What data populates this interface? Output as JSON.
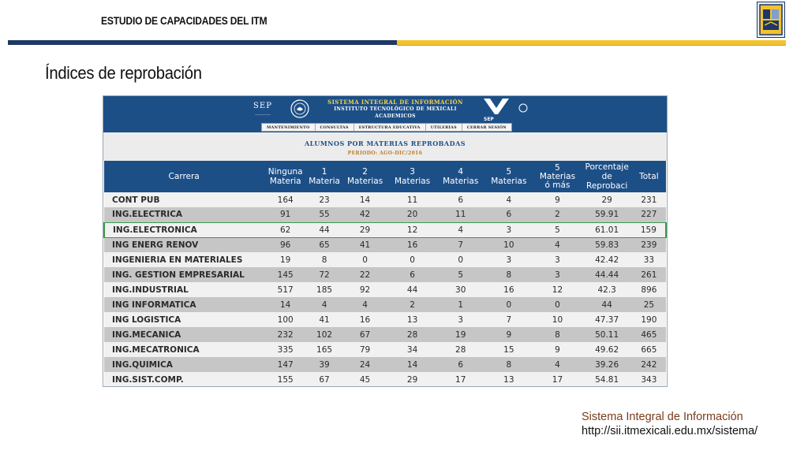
{
  "slide": {
    "header_title": "ESTUDIO DE CAPACIDADES DEL ITM",
    "title": "Índices de reprobación",
    "logo_icon": "itm-shield-icon",
    "colors": {
      "bar_blue": "#1f3864",
      "bar_gold": "#f2c331",
      "footer_title": "#7a3b1c"
    }
  },
  "sii": {
    "sep_label": "SEP",
    "system_title": "Sistema Integral de Información",
    "institute": "Instituto Tecnológico de Mexicali",
    "section": "ACADEMICOS",
    "menu": [
      "Mantenimiento",
      "Consultas",
      "Estructura Educativa",
      "Utilerías",
      "Cerrar Sesión"
    ],
    "report_title": "Alumnos Por Materias Reprobadas",
    "period": "Periodo: AGO-DIC/2016",
    "colors": {
      "banner": "#1d4f87",
      "title_gold": "#f6d34a",
      "period": "#c07b2a"
    }
  },
  "table": {
    "headers": {
      "carrera": "Carrera",
      "ninguna_1": "Ninguna",
      "ninguna_2": "Materia",
      "uno_1": "1",
      "uno_2": "Materia",
      "dos_1": "2",
      "dos_2": "Materias",
      "tres_1": "3",
      "tres_2": "Materias",
      "cuatro_1": "4",
      "cuatro_2": "Materias",
      "cinco_1": "5",
      "cinco_2": "Materias",
      "cinco_mas_1": "5",
      "cinco_mas_2": "Materias",
      "cinco_mas_3": "ó más",
      "pct_1": "Porcentaje",
      "pct_2": "de",
      "pct_3": "Reprobaci",
      "total": "Total"
    },
    "rows": [
      {
        "carrera": "CONT PUB",
        "ninguna": "164",
        "m1": "23",
        "m2": "14",
        "m3": "11",
        "m4": "6",
        "m5": "4",
        "m5mas": "9",
        "pct": "29",
        "total": "231"
      },
      {
        "carrera": "ING.ELECTRICA",
        "ninguna": "91",
        "m1": "55",
        "m2": "42",
        "m3": "20",
        "m4": "11",
        "m5": "6",
        "m5mas": "2",
        "pct": "59.91",
        "total": "227"
      },
      {
        "carrera": "ING.ELECTRONICA",
        "ninguna": "62",
        "m1": "44",
        "m2": "29",
        "m3": "12",
        "m4": "4",
        "m5": "3",
        "m5mas": "5",
        "pct": "61.01",
        "total": "159"
      },
      {
        "carrera": "ING ENERG RENOV",
        "ninguna": "96",
        "m1": "65",
        "m2": "41",
        "m3": "16",
        "m4": "7",
        "m5": "10",
        "m5mas": "4",
        "pct": "59.83",
        "total": "239"
      },
      {
        "carrera": "INGENIERIA EN MATERIALES",
        "ninguna": "19",
        "m1": "8",
        "m2": "0",
        "m3": "0",
        "m4": "0",
        "m5": "3",
        "m5mas": "3",
        "pct": "42.42",
        "total": "33"
      },
      {
        "carrera": "ING. GESTION EMPRESARIAL",
        "ninguna": "145",
        "m1": "72",
        "m2": "22",
        "m3": "6",
        "m4": "5",
        "m5": "8",
        "m5mas": "3",
        "pct": "44.44",
        "total": "261"
      },
      {
        "carrera": "ING.INDUSTRIAL",
        "ninguna": "517",
        "m1": "185",
        "m2": "92",
        "m3": "44",
        "m4": "30",
        "m5": "16",
        "m5mas": "12",
        "pct": "42.3",
        "total": "896"
      },
      {
        "carrera": "ING INFORMATICA",
        "ninguna": "14",
        "m1": "4",
        "m2": "4",
        "m3": "2",
        "m4": "1",
        "m5": "0",
        "m5mas": "0",
        "pct": "44",
        "total": "25"
      },
      {
        "carrera": "ING LOGISTICA",
        "ninguna": "100",
        "m1": "41",
        "m2": "16",
        "m3": "13",
        "m4": "3",
        "m5": "7",
        "m5mas": "10",
        "pct": "47.37",
        "total": "190"
      },
      {
        "carrera": "ING.MECANICA",
        "ninguna": "232",
        "m1": "102",
        "m2": "67",
        "m3": "28",
        "m4": "19",
        "m5": "9",
        "m5mas": "8",
        "pct": "50.11",
        "total": "465"
      },
      {
        "carrera": "ING.MECATRONICA",
        "ninguna": "335",
        "m1": "165",
        "m2": "79",
        "m3": "34",
        "m4": "28",
        "m5": "15",
        "m5mas": "9",
        "pct": "49.62",
        "total": "665"
      },
      {
        "carrera": "ING.QUIMICA",
        "ninguna": "147",
        "m1": "39",
        "m2": "24",
        "m3": "14",
        "m4": "6",
        "m5": "8",
        "m5mas": "4",
        "pct": "39.26",
        "total": "242"
      },
      {
        "carrera": "ING.SIST.COMP.",
        "ninguna": "155",
        "m1": "67",
        "m2": "45",
        "m3": "29",
        "m4": "17",
        "m5": "13",
        "m5mas": "17",
        "pct": "54.81",
        "total": "343"
      }
    ]
  },
  "footer": {
    "title": "Sistema Integral de Información",
    "url": "http://sii.itmexicali.edu.mx/sistema/"
  }
}
